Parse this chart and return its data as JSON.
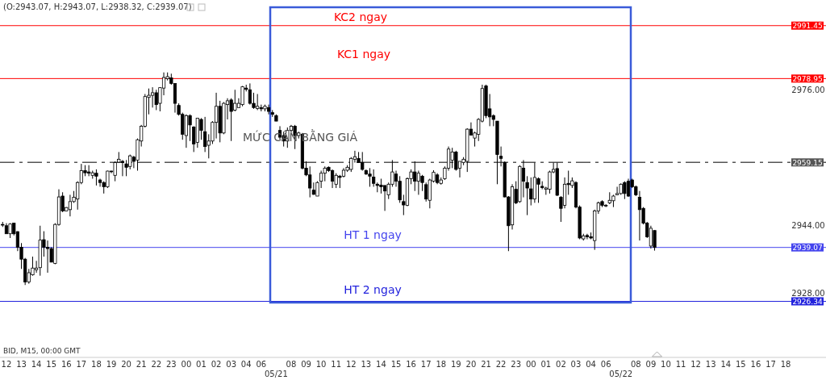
{
  "chart_data": {
    "type": "candlestick",
    "title": "(O:2943.07, H:2943.07, L:2938.32, C:2939.07)",
    "ylim": [
      2913.1,
      2997.5
    ],
    "yticks": [
      {
        "value": 2928,
        "label": "2928.00"
      },
      {
        "value": 2944,
        "label": "2944.00"
      },
      {
        "value": 2976,
        "label": "2976.00"
      }
    ],
    "ref_lines": [
      {
        "axis": "y",
        "value": 2991.45,
        "label": "2991.45",
        "color": "#ff0000"
      },
      {
        "axis": "y",
        "value": 2978.95,
        "label": "2978.95",
        "color": "#ff0000"
      },
      {
        "axis": "y",
        "value": 2959.15,
        "label": "2959.15",
        "color": "#555555",
        "line_style": "dashed"
      },
      {
        "axis": "y",
        "value": 2939.07,
        "label": "2939.07",
        "color": "#4444ee"
      },
      {
        "axis": "y",
        "value": 2926.34,
        "label": "2926.34",
        "color": "#2222dd"
      }
    ],
    "annotations": [
      "BID, M15, 00:00 GMT",
      {
        "text": "KC2 ngay",
        "y": 2991.45
      },
      {
        "text": "KC1 ngay",
        "y": 2978.95
      },
      {
        "text": "MỨC CÂN BẰNG GIÁ",
        "y": 2959.15
      },
      {
        "text": "HT 1 ngay",
        "y": 2939.07
      },
      {
        "text": "HT 2 ngay",
        "y": 2926.34
      }
    ],
    "categories": [
      null,
      "12",
      null,
      null,
      null,
      "13",
      null,
      null,
      null,
      "14",
      null,
      null,
      null,
      "15",
      null,
      null,
      null,
      "16",
      null,
      null,
      null,
      "17",
      null,
      null,
      null,
      "18",
      null,
      null,
      null,
      "19",
      null,
      null,
      null,
      "20",
      null,
      null,
      null,
      "21",
      null,
      null,
      null,
      "22",
      null,
      null,
      null,
      "23",
      null,
      null,
      null,
      "00",
      null,
      null,
      null,
      "01",
      null,
      null,
      null,
      "02",
      null,
      null,
      null,
      "03",
      null,
      null,
      null,
      "04",
      null,
      null,
      null,
      "06",
      null,
      null,
      null,
      "05/21",
      null,
      null,
      null,
      "08",
      null,
      null,
      null,
      "09",
      null,
      null,
      null,
      "10",
      null,
      null,
      null,
      "11",
      null,
      null,
      null,
      "12",
      null,
      null,
      null,
      "13",
      null,
      null,
      null,
      "14",
      null,
      null,
      null,
      "15",
      null,
      null,
      null,
      "16",
      null,
      null,
      null,
      "17",
      null,
      null,
      null,
      "18",
      null,
      null,
      null,
      "19",
      null,
      null,
      null,
      "20",
      null,
      null,
      null,
      "21",
      null,
      null,
      null,
      "22",
      null,
      null,
      null,
      "23",
      null,
      null,
      null,
      "00",
      null,
      null,
      null,
      "01",
      null,
      null,
      null,
      "02",
      null,
      null,
      null,
      "03",
      null,
      null,
      null,
      "04",
      null,
      null,
      null,
      "06",
      null,
      null,
      null,
      "05/22",
      null,
      null,
      null,
      "08",
      null,
      null,
      null,
      "09",
      null,
      null,
      null,
      "10",
      null,
      null,
      null,
      "11",
      null,
      null,
      null,
      "12",
      null,
      null,
      null,
      "13",
      null,
      null,
      null,
      "14",
      null,
      null,
      null,
      "15",
      null,
      null,
      null,
      "16",
      null,
      null,
      null,
      "17",
      null,
      null,
      null,
      "18"
    ],
    "ohlc": [
      [
        2944.5,
        2945.1,
        2943.9,
        2944.4
      ],
      [
        2944.2,
        2944.8,
        2942.3,
        2942.3
      ],
      [
        2942.3,
        2944.8,
        2941.3,
        2944.6
      ],
      [
        2944.8,
        2944.8,
        2941.9,
        2942.3
      ],
      [
        2942.8,
        2942.9,
        2938.2,
        2939.1
      ],
      [
        2939.1,
        2940.1,
        2934.0,
        2936.3
      ],
      [
        2936.3,
        2936.6,
        2930.2,
        2930.9
      ],
      [
        2930.9,
        2934.0,
        2930.5,
        2933.1
      ],
      [
        2932.6,
        2936.9,
        2932.4,
        2934.2
      ],
      [
        2933.8,
        2935.9,
        2933.1,
        2934.2
      ],
      [
        2934.3,
        2944.2,
        2932.4,
        2940.8
      ],
      [
        2940.9,
        2942.9,
        2936.9,
        2939.1
      ],
      [
        2939.1,
        2940.7,
        2933.1,
        2938.8
      ],
      [
        2938.8,
        2939.1,
        2935.6,
        2935.6
      ],
      [
        2935.3,
        2944.8,
        2935.1,
        2944.5
      ],
      [
        2944.5,
        2952.8,
        2944.2,
        2951.0
      ],
      [
        2951.2,
        2952.1,
        2947.4,
        2947.7
      ],
      [
        2947.7,
        2948.6,
        2947.6,
        2948.5
      ],
      [
        2948.0,
        2951.5,
        2946.4,
        2949.9
      ],
      [
        2949.9,
        2952.4,
        2949.6,
        2950.9
      ],
      [
        2950.5,
        2954.7,
        2948.0,
        2954.4
      ],
      [
        2954.4,
        2958.8,
        2954.0,
        2957.2
      ],
      [
        2957.2,
        2958.5,
        2955.9,
        2956.7
      ],
      [
        2956.9,
        2958.5,
        2955.9,
        2956.6
      ],
      [
        2956.1,
        2957.2,
        2955.3,
        2956.7
      ],
      [
        2956.6,
        2957.5,
        2953.7,
        2955.9
      ],
      [
        2955.0,
        2955.3,
        2953.4,
        2954.4
      ],
      [
        2954.4,
        2954.7,
        2951.8,
        2953.4
      ],
      [
        2953.4,
        2957.2,
        2953.1,
        2957.1
      ],
      [
        2957.1,
        2957.2,
        2956.6,
        2957.0
      ],
      [
        2956.1,
        2959.4,
        2954.7,
        2959.1
      ],
      [
        2959.2,
        2961.6,
        2959.1,
        2959.9
      ],
      [
        2959.4,
        2959.7,
        2955.9,
        2959.1
      ],
      [
        2958.8,
        2959.7,
        2955.9,
        2958.0
      ],
      [
        2958.2,
        2961.0,
        2957.5,
        2960.7
      ],
      [
        2960.4,
        2960.7,
        2957.8,
        2959.4
      ],
      [
        2959.7,
        2964.8,
        2957.2,
        2964.5
      ],
      [
        2964.2,
        2968.0,
        2962.9,
        2967.7
      ],
      [
        2967.7,
        2975.3,
        2967.4,
        2974.7
      ],
      [
        2974.5,
        2976.6,
        2970.5,
        2975.0
      ],
      [
        2975.0,
        2976.9,
        2972.1,
        2975.6
      ],
      [
        2975.6,
        2976.3,
        2971.5,
        2972.8
      ],
      [
        2973.1,
        2976.9,
        2971.2,
        2976.8
      ],
      [
        2976.7,
        2980.4,
        2975.0,
        2979.2
      ],
      [
        2978.9,
        2980.4,
        2978.5,
        2979.4
      ],
      [
        2979.1,
        2980.1,
        2977.5,
        2977.8
      ],
      [
        2977.8,
        2977.8,
        2970.9,
        2973.1
      ],
      [
        2972.6,
        2973.1,
        2970.2,
        2970.5
      ],
      [
        2970.5,
        2970.9,
        2964.5,
        2965.8
      ],
      [
        2965.5,
        2970.5,
        2962.6,
        2970.2
      ],
      [
        2970.2,
        2970.5,
        2964.2,
        2968.0
      ],
      [
        2967.5,
        2967.7,
        2961.6,
        2963.5
      ],
      [
        2963.9,
        2969.6,
        2962.6,
        2969.6
      ],
      [
        2969.3,
        2969.6,
        2964.5,
        2966.7
      ],
      [
        2966.4,
        2969.9,
        2961.6,
        2962.9
      ],
      [
        2963.2,
        2965.8,
        2960.1,
        2964.2
      ],
      [
        2964.2,
        2968.9,
        2963.5,
        2968.6
      ],
      [
        2968.6,
        2975.6,
        2964.8,
        2972.4
      ],
      [
        2972.4,
        2973.7,
        2963.9,
        2966.1
      ],
      [
        2966.1,
        2973.4,
        2965.8,
        2973.1
      ],
      [
        2972.8,
        2974.3,
        2969.3,
        2973.7
      ],
      [
        2973.9,
        2974.3,
        2964.2,
        2971.2
      ],
      [
        2971.5,
        2976.3,
        2971.2,
        2973.1
      ],
      [
        2972.1,
        2974.3,
        2972.1,
        2973.1
      ],
      [
        2972.8,
        2977.2,
        2972.4,
        2977.0
      ],
      [
        2976.7,
        2977.5,
        2975.9,
        2976.4
      ],
      [
        2976.3,
        2977.8,
        2972.8,
        2973.1
      ],
      [
        2973.1,
        2975.6,
        2971.8,
        2972.1
      ],
      [
        2971.9,
        2975.3,
        2971.5,
        2972.4
      ],
      [
        2972.1,
        2972.8,
        2971.2,
        2971.8
      ],
      [
        2971.8,
        2972.8,
        2971.2,
        2972.4
      ],
      [
        2972.1,
        2972.8,
        2970.5,
        2971.2
      ],
      [
        2970.9,
        2971.5,
        2969.9,
        2970.5
      ],
      [
        2970.2,
        2970.5,
        2968.9,
        2968.9
      ],
      [
        2966.7,
        2967.7,
        2964.5,
        2965.1
      ],
      [
        2965.5,
        2966.4,
        2962.9,
        2964.2
      ],
      [
        2964.2,
        2967.4,
        2962.6,
        2966.7
      ],
      [
        2966.7,
        2968.0,
        2966.1,
        2967.7
      ],
      [
        2967.7,
        2968.0,
        2962.3,
        2965.5
      ],
      [
        2965.5,
        2966.4,
        2964.8,
        2966.1
      ],
      [
        2965.8,
        2966.1,
        2957.5,
        2957.8
      ],
      [
        2957.8,
        2959.4,
        2955.9,
        2956.2
      ],
      [
        2956.2,
        2958.2,
        2950.9,
        2953.1
      ],
      [
        2952.6,
        2954.4,
        2951.5,
        2951.6
      ],
      [
        2951.2,
        2954.7,
        2951.2,
        2954.4
      ],
      [
        2954.7,
        2957.2,
        2953.1,
        2956.6
      ],
      [
        2956.6,
        2958.2,
        2954.7,
        2957.8
      ],
      [
        2958.0,
        2958.2,
        2956.9,
        2957.2
      ],
      [
        2957.2,
        2957.5,
        2953.1,
        2954.7
      ],
      [
        2954.0,
        2956.6,
        2953.1,
        2956.1
      ],
      [
        2955.9,
        2956.2,
        2953.1,
        2955.6
      ],
      [
        2955.9,
        2957.8,
        2955.6,
        2957.3
      ],
      [
        2957.3,
        2958.5,
        2956.9,
        2958.0
      ],
      [
        2957.5,
        2960.4,
        2956.9,
        2960.1
      ],
      [
        2959.9,
        2961.9,
        2959.1,
        2960.5
      ],
      [
        2960.1,
        2961.6,
        2959.1,
        2959.1
      ],
      [
        2959.1,
        2961.6,
        2957.2,
        2957.5
      ],
      [
        2957.2,
        2957.5,
        2956.2,
        2956.4
      ],
      [
        2956.4,
        2957.8,
        2953.4,
        2955.9
      ],
      [
        2955.7,
        2957.5,
        2953.4,
        2954.2
      ],
      [
        2954.0,
        2954.4,
        2952.1,
        2953.7
      ],
      [
        2953.8,
        2955.3,
        2951.8,
        2953.4
      ],
      [
        2953.7,
        2953.7,
        2947.7,
        2952.4
      ],
      [
        2951.5,
        2954.4,
        2950.5,
        2954.0
      ],
      [
        2954.0,
        2959.7,
        2953.4,
        2956.9
      ],
      [
        2956.4,
        2957.2,
        2953.4,
        2954.7
      ],
      [
        2954.7,
        2955.9,
        2949.6,
        2950.3
      ],
      [
        2949.9,
        2951.5,
        2946.7,
        2949.1
      ],
      [
        2949.0,
        2955.6,
        2948.8,
        2955.3
      ],
      [
        2955.3,
        2957.5,
        2954.0,
        2956.9
      ],
      [
        2956.9,
        2959.4,
        2952.4,
        2954.7
      ],
      [
        2954.7,
        2957.2,
        2951.5,
        2956.6
      ],
      [
        2955.9,
        2956.2,
        2952.4,
        2954.4
      ],
      [
        2953.9,
        2954.4,
        2949.9,
        2950.5
      ],
      [
        2950.2,
        2955.3,
        2948.3,
        2955.0
      ],
      [
        2954.7,
        2957.3,
        2954.4,
        2956.8
      ],
      [
        2956.2,
        2956.6,
        2954.0,
        2954.4
      ],
      [
        2954.2,
        2955.6,
        2953.9,
        2955.0
      ],
      [
        2955.3,
        2958.2,
        2955.0,
        2957.8
      ],
      [
        2957.8,
        2962.9,
        2957.2,
        2962.3
      ],
      [
        2959.7,
        2962.6,
        2957.8,
        2961.6
      ],
      [
        2961.6,
        2961.9,
        2957.2,
        2957.5
      ],
      [
        2957.8,
        2959.4,
        2955.6,
        2959.4
      ],
      [
        2959.1,
        2960.4,
        2958.5,
        2959.9
      ],
      [
        2959.4,
        2967.2,
        2956.9,
        2967.0
      ],
      [
        2967.0,
        2968.6,
        2965.5,
        2965.6
      ],
      [
        2964.9,
        2966.4,
        2962.9,
        2966.1
      ],
      [
        2965.8,
        2969.6,
        2964.2,
        2969.3
      ],
      [
        2968.9,
        2977.5,
        2968.6,
        2976.6
      ],
      [
        2977.2,
        2977.5,
        2969.6,
        2970.2
      ],
      [
        2971.8,
        2975.3,
        2967.7,
        2969.9
      ],
      [
        2970.2,
        2970.5,
        2967.7,
        2969.3
      ],
      [
        2968.9,
        2968.9,
        2954.0,
        2961.0
      ],
      [
        2960.6,
        2962.9,
        2958.2,
        2960.1
      ],
      [
        2959.1,
        2959.4,
        2950.9,
        2951.0
      ],
      [
        2951.0,
        2951.2,
        2938.2,
        2944.2
      ],
      [
        2944.4,
        2954.0,
        2943.3,
        2953.4
      ],
      [
        2952.8,
        2954.7,
        2949.3,
        2949.6
      ],
      [
        2949.9,
        2958.5,
        2949.6,
        2958.2
      ],
      [
        2957.8,
        2959.7,
        2950.9,
        2954.7
      ],
      [
        2954.4,
        2955.9,
        2946.7,
        2953.1
      ],
      [
        2952.9,
        2955.6,
        2949.0,
        2950.5
      ],
      [
        2950.5,
        2959.1,
        2949.6,
        2955.6
      ],
      [
        2955.3,
        2955.6,
        2949.6,
        2954.0
      ],
      [
        2953.5,
        2954.7,
        2952.8,
        2953.2
      ],
      [
        2952.8,
        2953.4,
        2951.5,
        2953.1
      ],
      [
        2952.8,
        2957.2,
        2951.8,
        2956.9
      ],
      [
        2956.9,
        2959.1,
        2956.6,
        2957.5
      ],
      [
        2957.7,
        2959.1,
        2951.2,
        2951.4
      ],
      [
        2950.9,
        2951.2,
        2945.1,
        2948.3
      ],
      [
        2949.0,
        2955.6,
        2948.3,
        2954.0
      ],
      [
        2954.2,
        2957.2,
        2951.5,
        2953.9
      ],
      [
        2953.7,
        2955.6,
        2953.1,
        2954.8
      ],
      [
        2954.4,
        2954.7,
        2948.3,
        2948.6
      ],
      [
        2948.6,
        2949.0,
        2941.0,
        2941.3
      ],
      [
        2941.1,
        2942.3,
        2940.7,
        2941.8
      ],
      [
        2941.9,
        2942.3,
        2941.0,
        2941.6
      ],
      [
        2941.6,
        2942.6,
        2941.0,
        2941.3
      ],
      [
        2940.7,
        2948.0,
        2938.5,
        2947.7
      ],
      [
        2947.7,
        2949.9,
        2947.0,
        2949.6
      ],
      [
        2949.9,
        2950.2,
        2948.6,
        2949.0
      ],
      [
        2949.0,
        2949.3,
        2948.6,
        2949.0
      ],
      [
        2949.6,
        2952.1,
        2949.3,
        2950.2
      ],
      [
        2950.1,
        2951.5,
        2948.6,
        2951.2
      ],
      [
        2951.5,
        2953.4,
        2951.4,
        2951.8
      ],
      [
        2951.8,
        2954.2,
        2951.5,
        2954.0
      ],
      [
        2954.4,
        2954.7,
        2950.5,
        2951.8
      ],
      [
        2954.7,
        2955.3,
        2951.0,
        2951.2
      ],
      [
        2955.0,
        2955.3,
        2953.1,
        2953.4
      ],
      [
        2953.4,
        2953.7,
        2951.2,
        2951.5
      ],
      [
        2950.9,
        2952.4,
        2940.7,
        2948.0
      ],
      [
        2948.3,
        2948.6,
        2944.5,
        2944.8
      ],
      [
        2944.8,
        2945.1,
        2941.3,
        2941.6
      ],
      [
        2939.4,
        2944.2,
        2938.8,
        2943.6
      ],
      [
        2943.07,
        2943.07,
        2938.32,
        2939.07
      ],
      null,
      null,
      null,
      null,
      null,
      null,
      null,
      null,
      null,
      null,
      null,
      null,
      null,
      null,
      null,
      null,
      null,
      null,
      null,
      null,
      null,
      null,
      null,
      null,
      null,
      null,
      null,
      null,
      null,
      null,
      null,
      null,
      null,
      null,
      null
    ]
  }
}
